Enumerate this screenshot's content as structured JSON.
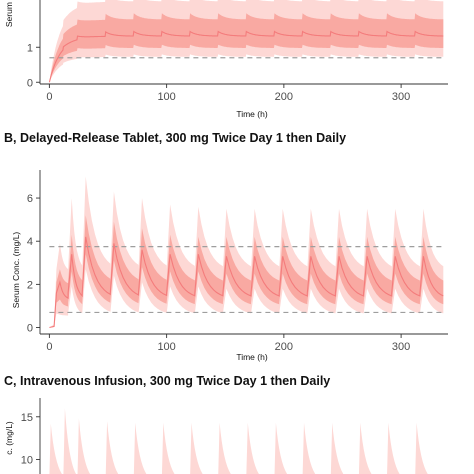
{
  "colors": {
    "median": "#f47c7c",
    "band_90": "#fdd8d5",
    "band_50": "#f9a9a2",
    "reference_line": "#9e9e9e",
    "axis": "#333333",
    "tick_text": "#4d4d4d"
  },
  "chart_data": [
    {
      "type": "area",
      "title": "",
      "xlabel": "Time (h)",
      "ylabel": "Serum Conc. (mg/L)",
      "ylabel_visible": "Serum Co",
      "x_ticks": [
        0,
        100,
        200,
        300
      ],
      "x_tick_labels": [
        "0",
        "100",
        "200",
        "300"
      ],
      "y_ticks": [
        0,
        1
      ],
      "y_tick_labels": [
        "0",
        "1"
      ],
      "xlim": [
        -8,
        340
      ],
      "ylim": [
        -0.05,
        2.35
      ],
      "reference_lines": [
        0.7
      ],
      "dosing": {
        "interval_h": 24,
        "doses": 14,
        "loading_second_dose_h": 12,
        "end_h": 336
      },
      "series": [
        {
          "values_at": [
            0,
            5,
            24,
            48,
            100,
            200,
            300,
            336
          ],
          "median_trough": [
            0.0,
            0.9,
            1.15,
            1.25,
            1.32,
            1.35,
            1.35,
            1.35
          ],
          "median_peak": [
            0.0,
            1.0,
            1.3,
            1.45,
            1.47,
            1.48,
            1.48,
            1.48
          ]
        }
      ],
      "band_90": {
        "lower": 0.75,
        "upper": 2.5
      },
      "band_50": {
        "lower": 1.0,
        "upper": 1.95
      }
    },
    {
      "type": "area",
      "title": "B, Delayed-Release Tablet, 300 mg Twice Day 1 then Daily",
      "xlabel": "Time (h)",
      "ylabel": "Serum Conc. (mg/L)",
      "x_ticks": [
        0,
        100,
        200,
        300
      ],
      "x_tick_labels": [
        "0",
        "100",
        "200",
        "300"
      ],
      "y_ticks": [
        0,
        2,
        4,
        6
      ],
      "y_tick_labels": [
        "0",
        "2",
        "4",
        "6"
      ],
      "xlim": [
        -8,
        340
      ],
      "ylim": [
        -0.3,
        7.3
      ],
      "reference_lines": [
        3.75,
        0.7
      ],
      "dosing": {
        "interval_h": 24,
        "doses": 14,
        "loading_second_dose_h": 12,
        "end_h": 336
      },
      "peaks": [
        {
          "t": 9,
          "median": 2.1,
          "p50_hi": 2.7,
          "p90_hi": 3.9
        },
        {
          "t": 19,
          "median": 3.4,
          "p50_hi": 4.3,
          "p90_hi": 6.0
        },
        {
          "t": 31,
          "median": 4.2,
          "p50_hi": 5.2,
          "p90_hi": 7.0
        },
        {
          "t": 55,
          "median": 3.9,
          "p50_hi": 4.9,
          "p90_hi": 6.3
        },
        {
          "t": 79,
          "median": 3.6,
          "p50_hi": 4.6,
          "p90_hi": 6.0
        },
        {
          "t": 103,
          "median": 3.4,
          "p50_hi": 4.3,
          "p90_hi": 5.7
        },
        {
          "t": 127,
          "median": 3.4,
          "p50_hi": 4.2,
          "p90_hi": 5.6
        },
        {
          "t": 151,
          "median": 3.3,
          "p50_hi": 4.2,
          "p90_hi": 5.5
        },
        {
          "t": 175,
          "median": 3.3,
          "p50_hi": 4.2,
          "p90_hi": 5.5
        },
        {
          "t": 199,
          "median": 3.3,
          "p50_hi": 4.2,
          "p90_hi": 5.5
        },
        {
          "t": 223,
          "median": 3.3,
          "p50_hi": 4.2,
          "p90_hi": 5.5
        },
        {
          "t": 247,
          "median": 3.3,
          "p50_hi": 4.2,
          "p90_hi": 5.5
        },
        {
          "t": 271,
          "median": 3.3,
          "p50_hi": 4.2,
          "p90_hi": 5.5
        },
        {
          "t": 295,
          "median": 3.3,
          "p50_hi": 4.2,
          "p90_hi": 5.5
        },
        {
          "t": 319,
          "median": 3.3,
          "p50_hi": 4.2,
          "p90_hi": 5.5
        }
      ],
      "troughs": {
        "median": 1.3,
        "p50_lo": 0.95,
        "p90_lo": 0.55
      }
    },
    {
      "type": "area",
      "title": "C, Intravenous Infusion, 300 mg Twice Day 1 then Daily",
      "xlabel": "",
      "ylabel": "Serum Conc. (mg/L)",
      "ylabel_visible": "c. (mg/L)",
      "y_ticks": [
        10,
        15
      ],
      "y_tick_labels": [
        "10",
        "15"
      ],
      "ylim": [
        8.3,
        17.2
      ],
      "xlim": [
        -8,
        340
      ],
      "dosing": {
        "interval_h": 24,
        "doses": 14,
        "loading_second_dose_h": 12,
        "end_h": 336
      },
      "peak_90_hi": [
        14.2,
        16.0,
        14.8,
        14.5,
        14.3,
        14.3,
        14.3,
        14.3,
        14.3,
        14.3,
        14.3,
        14.3,
        14.3,
        14.3,
        14.3
      ]
    }
  ]
}
